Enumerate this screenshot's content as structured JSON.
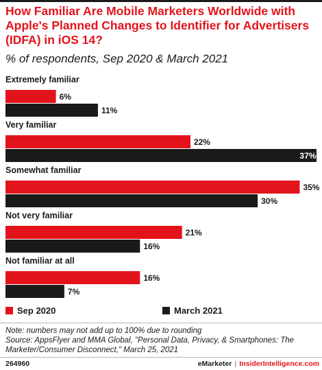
{
  "title": "How Familiar Are Mobile Marketers Worldwide with Apple's Planned Changes to Identifier for Advertisers (IDFA) in iOS 14?",
  "subtitle": "% of respondents, Sep 2020 & March 2021",
  "colors": {
    "accent": "#e3131b",
    "dark": "#1a1a1a"
  },
  "chart_data": {
    "type": "bar",
    "orientation": "horizontal",
    "categories": [
      "Extremely familiar",
      "Very familiar",
      "Somewhat familiar",
      "Not very familiar",
      "Not familiar at all"
    ],
    "series": [
      {
        "name": "Sep 2020",
        "color": "#e3131b",
        "values": [
          6,
          22,
          35,
          21,
          16
        ],
        "labels": [
          "6%",
          "22%",
          "35%",
          "21%",
          "16%"
        ]
      },
      {
        "name": "March 2021",
        "color": "#1a1a1a",
        "values": [
          11,
          37,
          30,
          16,
          7
        ],
        "labels": [
          "11%",
          "37%",
          "30%",
          "16%",
          "7%"
        ]
      }
    ],
    "xlim": [
      0,
      37
    ],
    "grid": false,
    "legend_position": "bottom"
  },
  "legend": [
    {
      "label": "Sep 2020",
      "color": "#e3131b"
    },
    {
      "label": "March 2021",
      "color": "#1a1a1a"
    }
  ],
  "notes": {
    "note": "Note: numbers may not add up to 100% due to rounding",
    "source": "Source: AppsFlyer and MMA Global, \"Personal Data, Privacy, & Smartphones: The Marketer/Consumer Disconnect,\" March 25, 2021"
  },
  "footer": {
    "chart_id": "264960",
    "brand_primary": "eMarketer",
    "separator": "|",
    "brand_secondary": "InsiderIntelligence.com"
  }
}
